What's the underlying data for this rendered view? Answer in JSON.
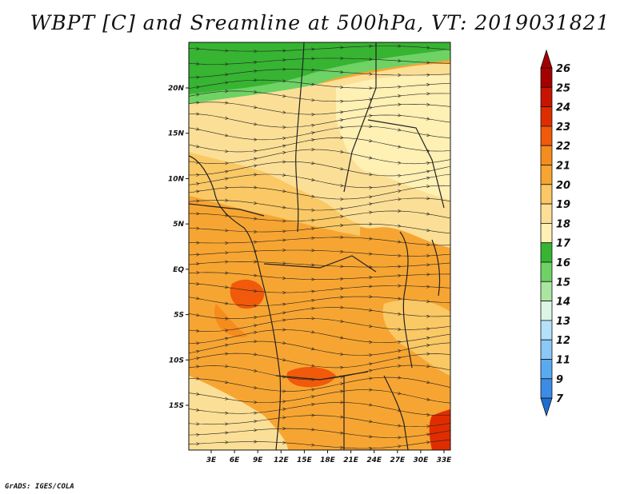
{
  "title": "WBPT [C] and Sreamline at 500hPa, VT: 2019031821",
  "credit": "GrADS: IGES/COLA",
  "map": {
    "region": "Central and Southern Africa",
    "field": "WBPT [C]",
    "level": "500hPa",
    "valid_time": "2019031821",
    "lat_labels": [
      "20N",
      "15N",
      "10N",
      "5N",
      "EQ",
      "5S",
      "10S",
      "15S"
    ],
    "lon_labels": [
      "3E",
      "6E",
      "9E",
      "12E",
      "15E",
      "18E",
      "21E",
      "24E",
      "27E",
      "30E",
      "33E"
    ],
    "lat_ticks": [
      20,
      15,
      10,
      5,
      0,
      -5,
      -10,
      -15
    ],
    "lon_ticks": [
      3,
      6,
      9,
      12,
      15,
      18,
      21,
      24,
      27,
      30,
      33
    ]
  },
  "colorbar": {
    "levels": [
      "26",
      "25",
      "24",
      "23",
      "22",
      "21",
      "20",
      "19",
      "18",
      "17",
      "16",
      "15",
      "14",
      "13",
      "12",
      "11",
      "9",
      "7"
    ],
    "colors": [
      "#a50000",
      "#c81400",
      "#e02d00",
      "#f05a0a",
      "#f58c1e",
      "#f7a532",
      "#fac864",
      "#fcdf96",
      "#fff0b4",
      "#37b432",
      "#6ed264",
      "#aae6a0",
      "#dcf5e6",
      "#b4e1fa",
      "#8cc8f5",
      "#5aaaf0",
      "#3c8ce6",
      "#1e6ed2"
    ]
  }
}
